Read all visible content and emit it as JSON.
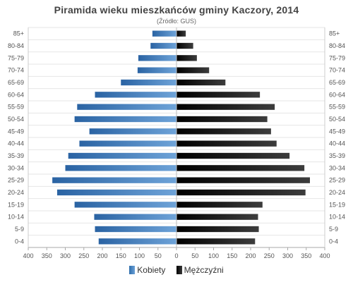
{
  "chart_data": {
    "type": "bar",
    "title": "Piramida wieku mieszkańców gminy Kaczory, 2014",
    "subtitle": "(Źródło: GUS)",
    "categories": [
      "85+",
      "80-84",
      "75-79",
      "70-74",
      "65-69",
      "60-64",
      "55-59",
      "50-54",
      "45-49",
      "40-44",
      "35-39",
      "30-34",
      "25-29",
      "20-24",
      "15-19",
      "10-14",
      "5-9",
      "0-4"
    ],
    "series": [
      {
        "name": "Kobiety",
        "color": "#3f7fc1",
        "values": [
          65,
          70,
          103,
          105,
          150,
          220,
          268,
          275,
          235,
          262,
          292,
          300,
          335,
          322,
          275,
          222,
          220,
          210
        ]
      },
      {
        "name": "Mężczyźni",
        "color": "#111111",
        "values": [
          25,
          45,
          55,
          88,
          132,
          225,
          265,
          245,
          255,
          270,
          305,
          345,
          360,
          348,
          232,
          220,
          222,
          212
        ]
      }
    ],
    "xticks": [
      "400",
      "350",
      "300",
      "250",
      "200",
      "150",
      "100",
      "50",
      "0",
      "50",
      "100",
      "150",
      "200",
      "250",
      "300",
      "350",
      "400"
    ],
    "xlim": [
      -400,
      400
    ],
    "grid": true,
    "legend_position": "bottom"
  }
}
